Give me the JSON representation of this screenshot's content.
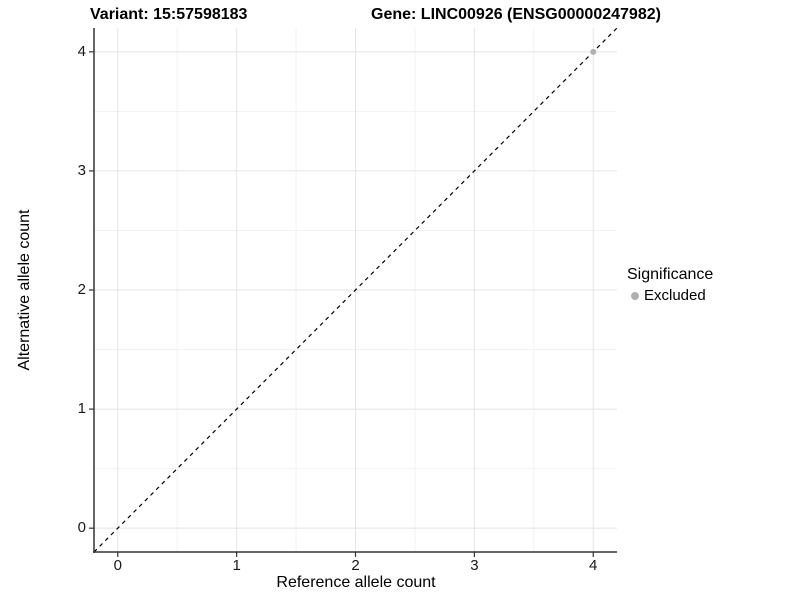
{
  "chart_data": {
    "type": "scatter",
    "title_left": "Variant: 15:57598183",
    "title_right": "Gene: LINC00926 (ENSG00000247982)",
    "xlabel": "Reference allele count",
    "ylabel": "Alternative allele count",
    "xlim": [
      -0.2,
      4.2
    ],
    "ylim": [
      -0.2,
      4.2
    ],
    "x_ticks": [
      0,
      1,
      2,
      3,
      4
    ],
    "y_ticks": [
      0,
      1,
      2,
      3,
      4
    ],
    "x_minor_ticks": [
      0.5,
      1.5,
      2.5,
      3.5
    ],
    "y_minor_ticks": [
      0.5,
      1.5,
      2.5,
      3.5
    ],
    "grid": "on",
    "reference_line": {
      "slope": 1,
      "intercept": 0,
      "style": "dashed",
      "color": "#000000"
    },
    "series": [
      {
        "name": "Excluded",
        "color": "#b0b0b0",
        "points": [
          [
            4,
            4
          ]
        ]
      }
    ],
    "legend": {
      "title": "Significance",
      "position": "right",
      "entries": [
        {
          "label": "Excluded",
          "color": "#b0b0b0"
        }
      ]
    }
  },
  "colors": {
    "grid_major": "#e4e4e4",
    "grid_minor": "#f2f2f2",
    "axis_line": "#333333",
    "tick_text": "#1a1a1a",
    "point": "#b0b0b0"
  }
}
